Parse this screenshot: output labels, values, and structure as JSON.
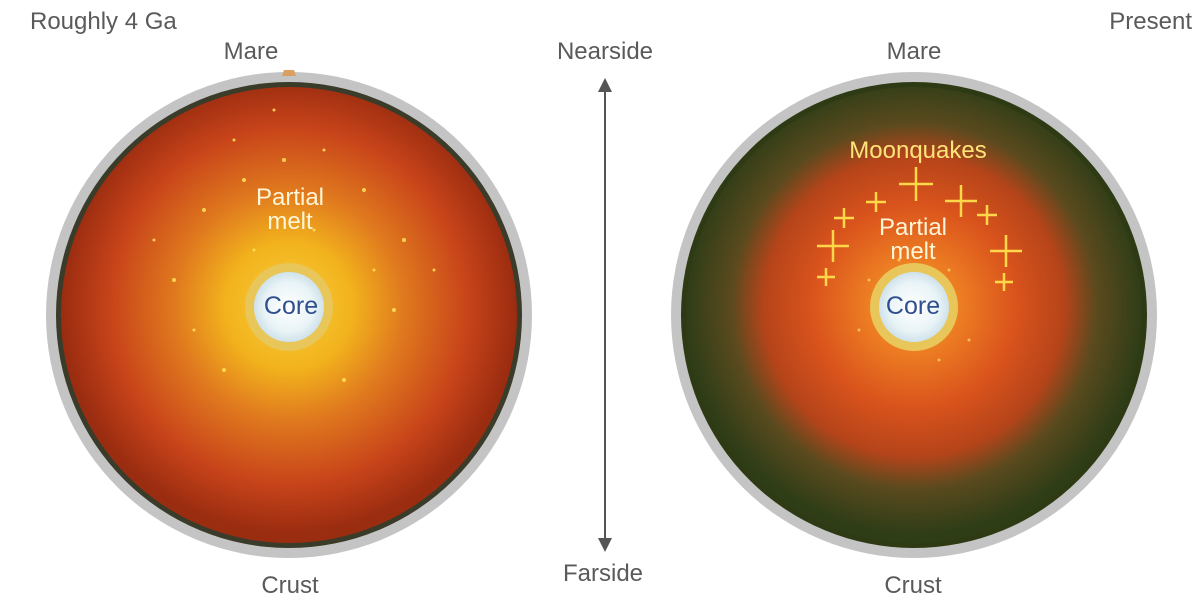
{
  "panels": {
    "left": {
      "time_label": "Roughly 4 Ga",
      "top_label": "Mare",
      "bottom_label": "Crust",
      "melt_label": "Partial\nmelt",
      "core_label": "Core"
    },
    "right": {
      "time_label": "Present",
      "top_label": "Mare",
      "bottom_label": "Crust",
      "melt_label": "Partial\nmelt",
      "core_label": "Core",
      "quake_label": "Moonquakes"
    }
  },
  "axis": {
    "top_label": "Nearside",
    "bottom_label": "Farside"
  },
  "colors": {
    "rim": "#b8b8b8",
    "crust_young": "#8e2e12",
    "crust_present": "#394a1c",
    "mantle": "#c3421a",
    "melt": "#f5c21e",
    "core": "#eef6f8",
    "quake_marks": "#ffd84a"
  }
}
